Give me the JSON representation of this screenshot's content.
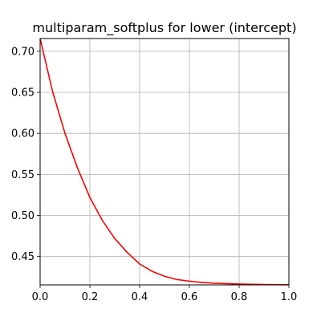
{
  "chart_data": {
    "type": "line",
    "title": "multiparam_softplus for lower (intercept)",
    "xlabel": "",
    "ylabel": "",
    "xlim": [
      0.0,
      1.0
    ],
    "ylim": [
      0.4155,
      0.7155
    ],
    "grid": true,
    "x_ticks": [
      {
        "value": 0.0,
        "label": "0.0"
      },
      {
        "value": 0.2,
        "label": "0.2"
      },
      {
        "value": 0.4,
        "label": "0.4"
      },
      {
        "value": 0.6,
        "label": "0.6"
      },
      {
        "value": 0.8,
        "label": "0.8"
      },
      {
        "value": 1.0,
        "label": "1.0"
      }
    ],
    "y_ticks": [
      {
        "value": 0.45,
        "label": "0.45"
      },
      {
        "value": 0.5,
        "label": "0.50"
      },
      {
        "value": 0.55,
        "label": "0.55"
      },
      {
        "value": 0.6,
        "label": "0.60"
      },
      {
        "value": 0.65,
        "label": "0.65"
      },
      {
        "value": 0.7,
        "label": "0.70"
      }
    ],
    "series": [
      {
        "color": "#ff0000",
        "x": [
          0.0,
          0.05,
          0.1,
          0.15,
          0.2,
          0.25,
          0.3,
          0.35,
          0.4,
          0.45,
          0.5,
          0.55,
          0.6,
          0.65,
          0.7,
          0.75,
          0.8,
          0.85,
          0.9,
          0.95,
          1.0
        ],
        "y": [
          0.7155,
          0.651,
          0.6,
          0.558,
          0.522,
          0.494,
          0.472,
          0.455,
          0.441,
          0.432,
          0.426,
          0.422,
          0.42,
          0.4185,
          0.4175,
          0.417,
          0.4165,
          0.4162,
          0.416,
          0.4158,
          0.4157
        ]
      }
    ]
  }
}
